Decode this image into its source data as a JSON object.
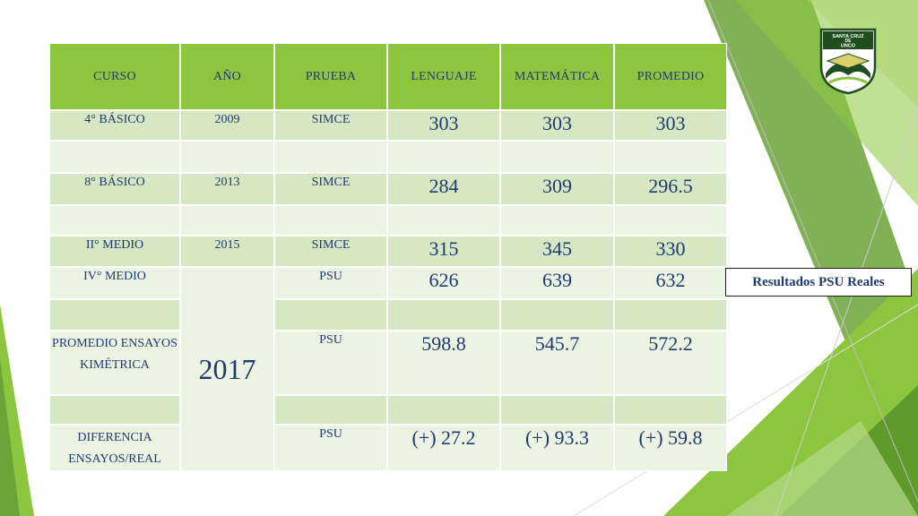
{
  "logo": {
    "line1": "SANTA CRUZ",
    "line2": "DE",
    "line3": "UNCO"
  },
  "table": {
    "headers": [
      "CURSO",
      "AÑO",
      "PRUEBA",
      "LENGUAJE",
      "MATEMÁTICA",
      "PROMEDIO"
    ],
    "rows": [
      {
        "curso": "4° BÁSICO",
        "anio": "2009",
        "prueba": "SIMCE",
        "lenguaje": "303",
        "matematica": "303",
        "promedio": "303"
      },
      {
        "curso": "8° BÁSICO",
        "anio": "2013",
        "prueba": "SIMCE",
        "lenguaje": "284",
        "matematica": "309",
        "promedio": "296.5"
      },
      {
        "curso": "II° MEDIO",
        "anio": "2015",
        "prueba": "SIMCE",
        "lenguaje": "315",
        "matematica": "345",
        "promedio": "330"
      },
      {
        "curso": "IV° MEDIO",
        "anio": "2017",
        "prueba": "PSU",
        "lenguaje": "626",
        "matematica": "639",
        "promedio": "632"
      },
      {
        "curso": "PROMEDIO ENSAYOS KIMÉTRICA",
        "prueba": "PSU",
        "lenguaje": "598.8",
        "matematica": "545.7",
        "promedio": "572.2"
      },
      {
        "curso": "DIFERENCIA ENSAYOS/REAL",
        "prueba": "PSU",
        "lenguaje": "(+) 27.2",
        "matematica": "(+) 93.3",
        "promedio": "(+) 59.8"
      }
    ]
  },
  "psu_label": "Resultados PSU Reales",
  "colors": {
    "header_green": "#8cc63f",
    "row_dark": "#d6e7c4",
    "row_light": "#ebf3e3",
    "text_navy": "#1f3b6e"
  }
}
